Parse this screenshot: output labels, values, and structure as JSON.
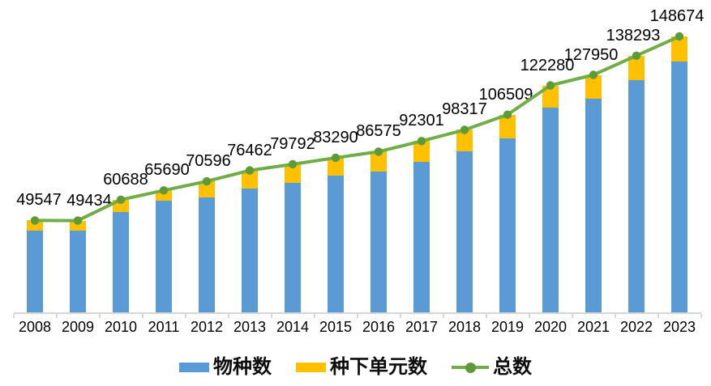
{
  "chart_data": {
    "type": "bar",
    "subtype": "stacked-bar-with-line-overlay",
    "title": "",
    "xlabel": "",
    "ylabel": "",
    "categories": [
      "2008",
      "2009",
      "2010",
      "2011",
      "2012",
      "2013",
      "2014",
      "2015",
      "2016",
      "2017",
      "2018",
      "2019",
      "2020",
      "2021",
      "2022",
      "2023"
    ],
    "series": [
      {
        "name": "物种数",
        "type": "bar",
        "stack": true,
        "color": "#5B9BD5",
        "values": [
          44000,
          43950,
          54000,
          60200,
          62000,
          66650,
          69700,
          73500,
          75850,
          80900,
          86600,
          93800,
          110231,
          115064,
          125034,
          135061
        ]
      },
      {
        "name": "种下单元数",
        "type": "bar",
        "stack": true,
        "color": "#FFC000",
        "values": [
          5547,
          5484,
          6688,
          5490,
          8596,
          9812,
          10092,
          9790,
          10725,
          11401,
          11717,
          12709,
          12049,
          12886,
          13259,
          13613
        ]
      },
      {
        "name": "总数",
        "type": "line",
        "color": "#70AD47",
        "marker_color": "#5E9A39",
        "values": [
          49547,
          49434,
          60688,
          65690,
          70596,
          76462,
          79792,
          83290,
          86575,
          92301,
          98317,
          106509,
          122280,
          127950,
          138293,
          148674
        ]
      }
    ],
    "data_labels": [
      "49547",
      "49434",
      "60688",
      "65690",
      "70596",
      "76462",
      "79792",
      "83290",
      "86575",
      "92301",
      "98317",
      "106509",
      "122280",
      "127950",
      "138293",
      "148674"
    ],
    "ylim": [
      0,
      155000
    ],
    "grid": false,
    "y_axis_visible": false,
    "axis_line_color": "#D6D6D6",
    "legend_position": "bottom",
    "split_note": "Totals are labeled exactly in the image; the blue/yellow segment split per year is estimated from bar segment pixel heights."
  },
  "legend": {
    "items": [
      {
        "label": "物种数",
        "marker": "bar-swatch",
        "color": "#5B9BD5"
      },
      {
        "label": "种下单元数",
        "marker": "bar-swatch",
        "color": "#FFC000"
      },
      {
        "label": "总数",
        "marker": "line-dot",
        "color": "#70AD47",
        "dot_color": "#5E9A39"
      }
    ]
  }
}
